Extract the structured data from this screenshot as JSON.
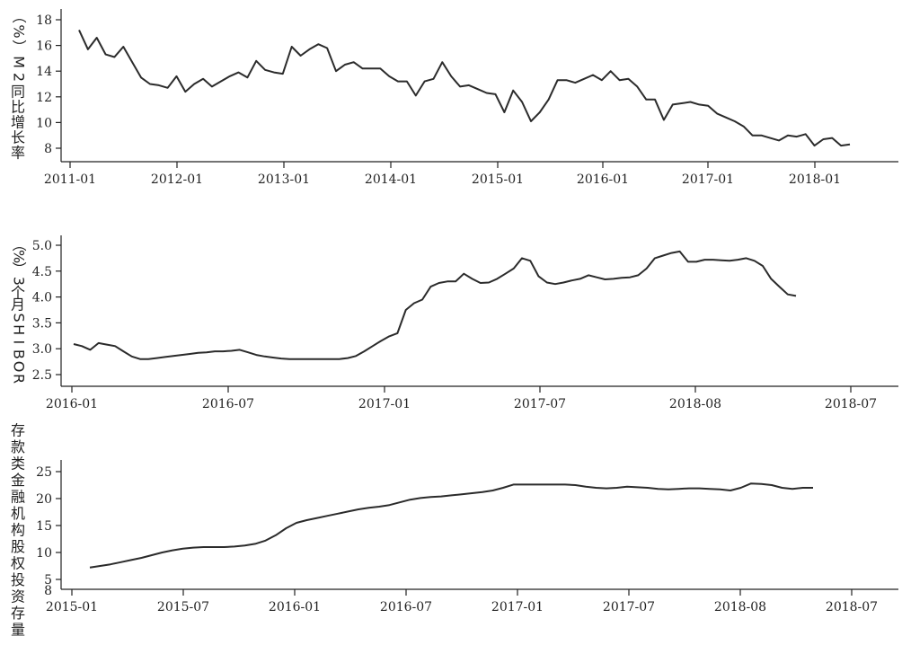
{
  "chart_data": [
    {
      "type": "line",
      "ylabel": "M2同比增长率（%）",
      "ylim": [
        7.5,
        18.5
      ],
      "yticks": [
        8,
        10,
        12,
        14,
        16,
        18
      ],
      "xticks": [
        "2011-01",
        "2012-01",
        "2013-01",
        "2014-01",
        "2015-01",
        "2016-01",
        "2017-01",
        "2018-01"
      ],
      "series": [
        {
          "values": [
            17.2,
            15.7,
            16.6,
            15.3,
            15.1,
            15.9,
            14.7,
            13.5,
            13.0,
            12.9,
            12.7,
            13.6,
            12.4,
            13.0,
            13.4,
            12.8,
            13.2,
            13.6,
            13.9,
            13.5,
            14.8,
            14.1,
            13.9,
            13.8,
            15.9,
            15.2,
            15.7,
            16.1,
            15.8,
            14.0,
            14.5,
            14.7,
            14.2,
            14.2,
            14.2,
            13.6,
            13.2,
            13.2,
            12.1,
            13.2,
            13.4,
            14.7,
            13.6,
            12.8,
            12.9,
            12.6,
            12.3,
            12.2,
            10.8,
            12.5,
            11.6,
            10.1,
            10.8,
            11.8,
            13.3,
            13.3,
            13.1,
            13.4,
            13.7,
            13.3,
            14.0,
            13.3,
            13.4,
            12.8,
            11.8,
            11.8,
            10.2,
            11.4,
            11.5,
            11.6,
            11.4,
            11.3,
            10.7,
            10.4,
            10.1,
            9.7,
            9.0,
            9.0,
            8.8,
            8.6,
            9.0,
            8.9,
            9.1,
            8.2,
            8.7,
            8.8,
            8.2,
            8.3
          ]
        }
      ]
    },
    {
      "type": "line",
      "ylabel": "3个月SHIBOR（%）",
      "ylim": [
        2.3,
        5.2
      ],
      "yticks": [
        2.5,
        3.0,
        3.5,
        4.0,
        4.5,
        5.0
      ],
      "xticks": [
        "2016-01",
        "2016-07",
        "2017-01",
        "2017-07",
        "2018-08",
        "2018-07"
      ],
      "series": [
        {
          "values": [
            3.09,
            3.05,
            2.98,
            3.11,
            3.08,
            3.05,
            2.95,
            2.85,
            2.8,
            2.8,
            2.82,
            2.84,
            2.86,
            2.88,
            2.9,
            2.92,
            2.93,
            2.95,
            2.95,
            2.96,
            2.98,
            2.93,
            2.88,
            2.85,
            2.83,
            2.81,
            2.8,
            2.8,
            2.8,
            2.8,
            2.8,
            2.8,
            2.8,
            2.82,
            2.86,
            2.95,
            3.05,
            3.15,
            3.24,
            3.3,
            3.75,
            3.88,
            3.95,
            4.2,
            4.27,
            4.3,
            4.3,
            4.45,
            4.35,
            4.27,
            4.28,
            4.35,
            4.45,
            4.55,
            4.75,
            4.7,
            4.4,
            4.28,
            4.25,
            4.28,
            4.32,
            4.35,
            4.42,
            4.38,
            4.34,
            4.35,
            4.37,
            4.38,
            4.42,
            4.55,
            4.75,
            4.8,
            4.85,
            4.88,
            4.68,
            4.68,
            4.72,
            4.72,
            4.71,
            4.7,
            4.72,
            4.75,
            4.7,
            4.6,
            4.35,
            4.2,
            4.05,
            4.02
          ]
        }
      ]
    },
    {
      "type": "line",
      "ylabel": "存款类金融机构股权投资存量",
      "ylim": [
        4,
        27
      ],
      "yticks": [
        5,
        10,
        15,
        20,
        25
      ],
      "extra_tick": "8",
      "xticks": [
        "2015-01",
        "2015-07",
        "2016-01",
        "2016-07",
        "2017-01",
        "2017-07",
        "2018-08",
        "2018-07"
      ],
      "series": [
        {
          "values": [
            7.2,
            7.5,
            7.8,
            8.2,
            8.6,
            9.0,
            9.5,
            10.0,
            10.4,
            10.7,
            10.9,
            11.0,
            11.0,
            11.0,
            11.1,
            11.3,
            11.6,
            12.2,
            13.2,
            14.5,
            15.5,
            16.0,
            16.4,
            16.8,
            17.2,
            17.6,
            18.0,
            18.3,
            18.5,
            18.8,
            19.3,
            19.8,
            20.1,
            20.3,
            20.4,
            20.6,
            20.8,
            21.0,
            21.2,
            21.5,
            22.0,
            22.6,
            22.6,
            22.6,
            22.6,
            22.6,
            22.6,
            22.5,
            22.2,
            22.0,
            21.9,
            22.0,
            22.2,
            22.1,
            22.0,
            21.8,
            21.7,
            21.8,
            21.9,
            21.9,
            21.8,
            21.7,
            21.5,
            22.0,
            22.8,
            22.7,
            22.5,
            22.0,
            21.8,
            22.0,
            22.0
          ]
        }
      ]
    }
  ]
}
